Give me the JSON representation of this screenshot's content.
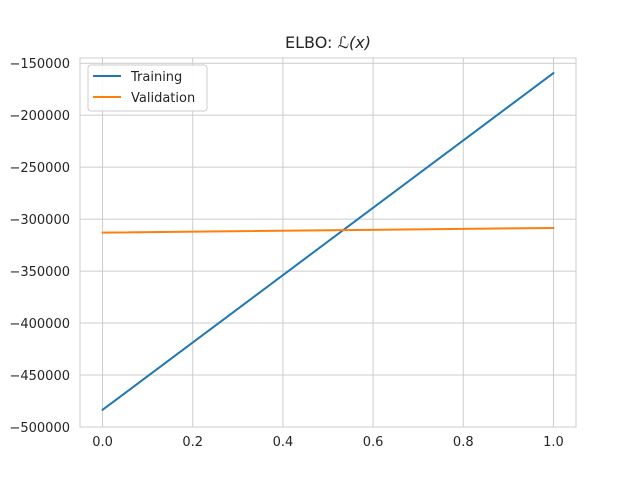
{
  "chart_data": {
    "type": "line",
    "title_prefix": "ELBO: ",
    "title_math": "ℒ(x)",
    "xlabel": "",
    "ylabel": "",
    "xlim": [
      -0.05,
      1.05
    ],
    "ylim": [
      -500000,
      -145000
    ],
    "xticks": [
      0.0,
      0.2,
      0.4,
      0.6,
      0.8,
      1.0
    ],
    "xtick_labels": [
      "0.0",
      "0.2",
      "0.4",
      "0.6",
      "0.8",
      "1.0"
    ],
    "yticks": [
      -500000,
      -450000,
      -400000,
      -350000,
      -300000,
      -250000,
      -200000,
      -150000
    ],
    "ytick_labels": [
      "−500000",
      "−450000",
      "−400000",
      "−350000",
      "−300000",
      "−250000",
      "−200000",
      "−150000"
    ],
    "grid": true,
    "legend_position": "top-left",
    "series": [
      {
        "name": "Training",
        "color": "#1f77b4",
        "x": [
          0.0,
          1.0
        ],
        "y": [
          -483500,
          -159500
        ]
      },
      {
        "name": "Validation",
        "color": "#ff7f0e",
        "x": [
          0.0,
          1.0
        ],
        "y": [
          -313000,
          -308500
        ]
      }
    ]
  }
}
